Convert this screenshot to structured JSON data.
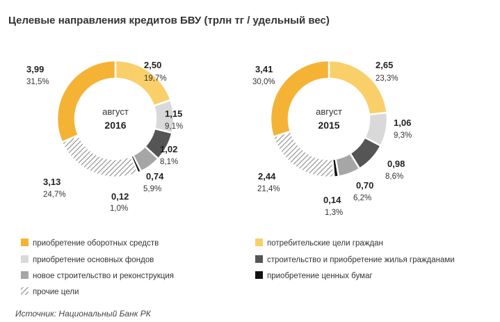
{
  "title": "Целевые направления кредитов БВУ (трлн тг /  удельный вес)",
  "source": "Источник: Национальный Банк РК",
  "colors": {
    "working_capital": "#f5b335",
    "consumer": "#f9cf6a",
    "fixed_assets": "#d9d9d9",
    "housing": "#555555",
    "new_construction": "#a6a6a6",
    "securities": "#111111",
    "other": "hatched"
  },
  "legend": [
    {
      "key": "working_capital",
      "label": "приобретение оборотных средств"
    },
    {
      "key": "consumer",
      "label": "потребительские цели граждан"
    },
    {
      "key": "fixed_assets",
      "label": "приобретение основных фондов"
    },
    {
      "key": "housing",
      "label": "строительство и приобретение жилья гражданами"
    },
    {
      "key": "new_construction",
      "label": "новое строительство и реконструкция"
    },
    {
      "key": "securities",
      "label": "приобретение ценных бумаг"
    },
    {
      "key": "other",
      "label": "прочие цели"
    }
  ],
  "chart_data": [
    {
      "type": "pie",
      "donut": true,
      "center_line1": "август",
      "center_line2": "2016",
      "slices": [
        {
          "key": "consumer",
          "value": 2.5,
          "value_label": "2,50",
          "pct_label": "19,7%"
        },
        {
          "key": "fixed_assets",
          "value": 1.15,
          "value_label": "1,15",
          "pct_label": "9,1%"
        },
        {
          "key": "housing",
          "value": 1.02,
          "value_label": "1,02",
          "pct_label": "8,1%"
        },
        {
          "key": "new_construction",
          "value": 0.74,
          "value_label": "0,74",
          "pct_label": "5,9%"
        },
        {
          "key": "securities",
          "value": 0.12,
          "value_label": "0,12",
          "pct_label": "1,0%"
        },
        {
          "key": "other",
          "value": 3.13,
          "value_label": "3,13",
          "pct_label": "24,7%"
        },
        {
          "key": "working_capital",
          "value": 3.99,
          "value_label": "3,99",
          "pct_label": "31,5%"
        }
      ]
    },
    {
      "type": "pie",
      "donut": true,
      "center_line1": "август",
      "center_line2": "2015",
      "slices": [
        {
          "key": "consumer",
          "value": 2.65,
          "value_label": "2,65",
          "pct_label": "23,3%"
        },
        {
          "key": "fixed_assets",
          "value": 1.06,
          "value_label": "1,06",
          "pct_label": "9,3%"
        },
        {
          "key": "housing",
          "value": 0.98,
          "value_label": "0,98",
          "pct_label": "8,6%"
        },
        {
          "key": "new_construction",
          "value": 0.7,
          "value_label": "0,70",
          "pct_label": "6,2%"
        },
        {
          "key": "securities",
          "value": 0.14,
          "value_label": "0,14",
          "pct_label": "1,3%"
        },
        {
          "key": "other",
          "value": 2.44,
          "value_label": "2,44",
          "pct_label": "21,4%"
        },
        {
          "key": "working_capital",
          "value": 3.41,
          "value_label": "3,41",
          "pct_label": "30,0%"
        }
      ]
    }
  ]
}
